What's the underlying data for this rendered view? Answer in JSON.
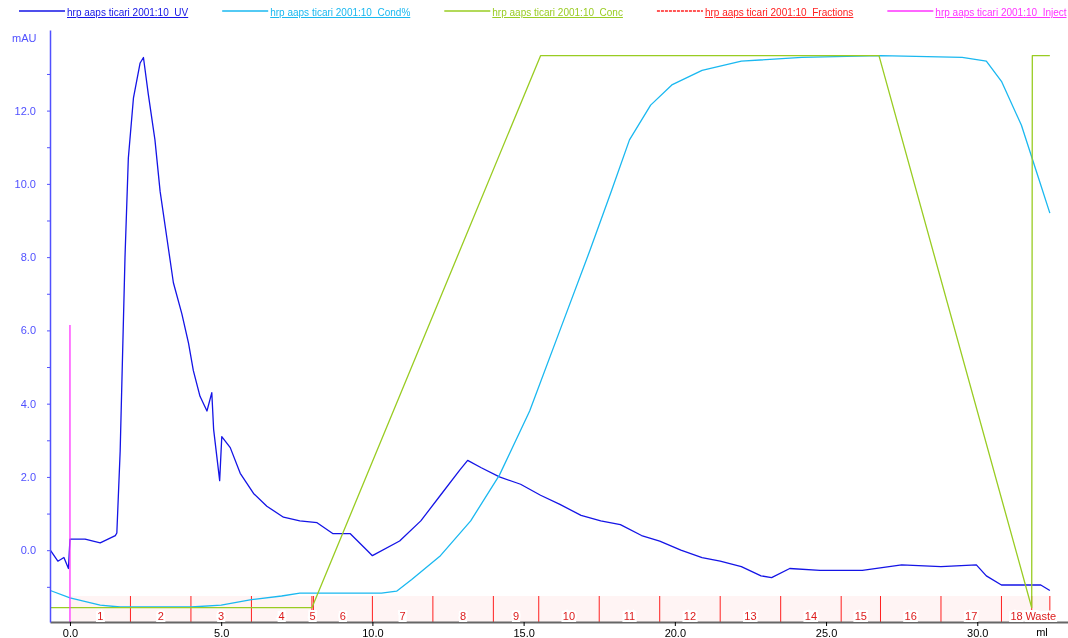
{
  "chart_data": {
    "type": "line",
    "xlabel": "ml",
    "ylabel": "mAU",
    "xlim": [
      -0.66,
      33.0
    ],
    "ylim": [
      -1.96,
      14.2
    ],
    "xticks": [
      {
        "value": 0,
        "label": "0.0"
      },
      {
        "value": 5,
        "label": "5.0"
      },
      {
        "value": 10,
        "label": "10.0"
      },
      {
        "value": 15,
        "label": "15.0"
      },
      {
        "value": 20,
        "label": "20.0"
      },
      {
        "value": 25,
        "label": "25.0"
      },
      {
        "value": 30,
        "label": "30.0"
      }
    ],
    "yticks": [
      {
        "value": -1,
        "label": null
      },
      {
        "value": 0,
        "label": "0.0"
      },
      {
        "value": 1,
        "label": null
      },
      {
        "value": 2,
        "label": "2.0"
      },
      {
        "value": 3,
        "label": null
      },
      {
        "value": 4,
        "label": "4.0"
      },
      {
        "value": 5,
        "label": null
      },
      {
        "value": 6,
        "label": "6.0"
      },
      {
        "value": 7,
        "label": null
      },
      {
        "value": 8,
        "label": "8.0"
      },
      {
        "value": 9,
        "label": null
      },
      {
        "value": 10,
        "label": "10.0"
      },
      {
        "value": 11,
        "label": null
      },
      {
        "value": 12,
        "label": "12.0"
      },
      {
        "value": 13,
        "label": null
      }
    ],
    "grid": false,
    "legend": "top",
    "marker": "none",
    "line_style": "solid",
    "series": [
      {
        "name": "hrp aaps ticari 2001:10_UV",
        "color": "#1414e6",
        "x": [
          -0.65,
          -0.4,
          -0.2,
          -0.05,
          0.0,
          0.5,
          1.0,
          1.5,
          1.55,
          1.66,
          1.82,
          1.93,
          2.1,
          2.32,
          2.43,
          2.59,
          2.81,
          2.98,
          3.2,
          3.42,
          3.7,
          3.92,
          4.08,
          4.3,
          4.53,
          4.69,
          4.75,
          4.95,
          5.02,
          5.3,
          5.63,
          6.07,
          6.51,
          7.06,
          7.6,
          8.17,
          8.7,
          9.27,
          9.82,
          10.0,
          10.9,
          11.6,
          12.25,
          12.9,
          13.15,
          13.6,
          14.2,
          14.9,
          15.56,
          16.2,
          16.9,
          17.55,
          18.2,
          18.9,
          19.5,
          20.2,
          20.9,
          21.5,
          22.2,
          22.85,
          23.2,
          23.8,
          24.8,
          26.2,
          27.5,
          28.8,
          29.97,
          30.3,
          30.8,
          31.46,
          32.1,
          32.4
        ],
        "values": [
          0.0,
          -0.3,
          -0.2,
          -0.5,
          0.3,
          0.3,
          0.2,
          0.4,
          0.47,
          2.7,
          8.0,
          10.7,
          12.35,
          13.3,
          13.45,
          12.45,
          11.2,
          9.8,
          8.55,
          7.3,
          6.45,
          5.65,
          4.9,
          4.2,
          3.8,
          4.3,
          3.3,
          1.9,
          3.1,
          2.8,
          2.1,
          1.55,
          1.2,
          0.9,
          0.8,
          0.75,
          0.45,
          0.45,
          0.0,
          -0.15,
          0.25,
          0.8,
          1.5,
          2.2,
          2.45,
          2.25,
          2.0,
          1.8,
          1.5,
          1.25,
          0.95,
          0.8,
          0.7,
          0.4,
          0.25,
          0.0,
          -0.2,
          -0.3,
          -0.45,
          -0.7,
          -0.75,
          -0.5,
          -0.55,
          -0.55,
          -0.4,
          -0.45,
          -0.4,
          -0.7,
          -0.95,
          -0.95,
          -0.95,
          -1.1
        ]
      },
      {
        "name": "hrp aaps ticari 2001:10_Cond%",
        "color": "#1ab8f0",
        "x": [
          -0.65,
          0.0,
          1.0,
          1.66,
          4.0,
          5.0,
          6.0,
          7.0,
          7.6,
          8.9,
          10.3,
          10.8,
          11.3,
          12.25,
          13.25,
          14.2,
          15.2,
          16.2,
          17.2,
          17.9,
          18.5,
          19.2,
          19.9,
          20.9,
          22.2,
          24.2,
          26.8,
          29.5,
          30.3,
          30.8,
          31.46,
          31.95,
          32.4
        ],
        "values": [
          -1.1,
          -1.3,
          -1.5,
          -1.55,
          -1.55,
          -1.5,
          -1.35,
          -1.25,
          -1.17,
          -1.17,
          -1.17,
          -1.12,
          -0.8,
          -0.15,
          0.8,
          2.05,
          3.8,
          6.0,
          8.2,
          9.8,
          11.2,
          12.15,
          12.7,
          13.1,
          13.35,
          13.45,
          13.5,
          13.45,
          13.35,
          12.8,
          11.6,
          10.35,
          9.2
        ]
      },
      {
        "name": "hrp aaps ticari 2001:10_Conc",
        "color": "#99cc22",
        "x": [
          -0.65,
          8.0,
          15.56,
          26.75,
          31.8,
          31.82,
          32.4
        ],
        "values": [
          -1.57,
          -1.57,
          13.5,
          13.5,
          -1.57,
          13.5,
          13.5
        ]
      },
      {
        "name": "hrp aaps ticari 2001:10_Inject",
        "color": "#ff33ff",
        "x": [
          0,
          0
        ],
        "values": [
          -1.96,
          6.15
        ]
      }
    ],
    "bands": [
      {
        "axis": "x",
        "from": 0,
        "to": 2.0,
        "label": "1",
        "color": "#ff2020"
      },
      {
        "axis": "x",
        "from": 2.0,
        "to": 4.0,
        "label": "2",
        "color": "#ff2020"
      },
      {
        "axis": "x",
        "from": 4.0,
        "to": 6.0,
        "label": "3",
        "color": "#ff2020"
      },
      {
        "axis": "x",
        "from": 6.0,
        "to": 8.0,
        "label": "4",
        "color": "#ff2020"
      },
      {
        "axis": "x",
        "from": 8.0,
        "to": 8.05,
        "label": "5",
        "color": "#ff2020"
      },
      {
        "axis": "x",
        "from": 8.05,
        "to": 10.0,
        "label": "6",
        "color": "#ff2020"
      },
      {
        "axis": "x",
        "from": 10.0,
        "to": 12.0,
        "label": "7",
        "color": "#ff2020"
      },
      {
        "axis": "x",
        "from": 12.0,
        "to": 14.0,
        "label": "8",
        "color": "#ff2020"
      },
      {
        "axis": "x",
        "from": 14.0,
        "to": 15.5,
        "label": "9",
        "color": "#ff2020"
      },
      {
        "axis": "x",
        "from": 15.5,
        "to": 17.5,
        "label": "10",
        "color": "#ff2020"
      },
      {
        "axis": "x",
        "from": 17.5,
        "to": 19.5,
        "label": "11",
        "color": "#ff2020"
      },
      {
        "axis": "x",
        "from": 19.5,
        "to": 21.5,
        "label": "12",
        "color": "#ff2020"
      },
      {
        "axis": "x",
        "from": 21.5,
        "to": 23.5,
        "label": "13",
        "color": "#ff2020"
      },
      {
        "axis": "x",
        "from": 23.5,
        "to": 25.5,
        "label": "14",
        "color": "#ff2020"
      },
      {
        "axis": "x",
        "from": 25.5,
        "to": 26.8,
        "label": "15",
        "color": "#ff2020"
      },
      {
        "axis": "x",
        "from": 26.8,
        "to": 28.8,
        "label": "16",
        "color": "#ff2020"
      },
      {
        "axis": "x",
        "from": 28.8,
        "to": 30.8,
        "label": "17",
        "color": "#ff2020"
      },
      {
        "axis": "x",
        "from": 30.8,
        "to": 31.8,
        "label": "18",
        "color": "#ff2020"
      },
      {
        "axis": "x",
        "from": 31.8,
        "to": 32.4,
        "label": "Waste",
        "color": "#ff2020"
      }
    ],
    "annotations": [
      "hrp aaps ticari 2001:10_Fractions"
    ]
  }
}
